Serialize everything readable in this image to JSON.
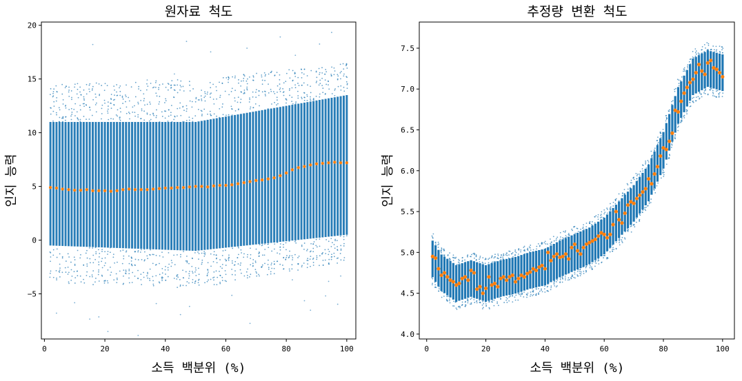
{
  "colors": {
    "scatter": "#1f77b4",
    "mean": "#ff7f0e"
  },
  "chart_data": [
    {
      "type": "scatter",
      "title": "원자료 척도",
      "xlabel": "소득 백분위 (%)",
      "ylabel": "인지 능력",
      "xlim": [
        -1,
        103
      ],
      "ylim": [
        -9.2,
        20.3
      ],
      "xticks": [
        0,
        20,
        40,
        60,
        80,
        100
      ],
      "yticks": [
        -5,
        0,
        5,
        10,
        15,
        20
      ],
      "ytick_labels": [
        "−5",
        "0",
        "5",
        "10",
        "15",
        "20"
      ],
      "series": [
        {
          "kind": "scatter-band",
          "x_range": [
            2,
            100
          ],
          "center": [
            [
              2,
              4.9
            ],
            [
              10,
              4.65
            ],
            [
              20,
              4.6
            ],
            [
              30,
              4.7
            ],
            [
              40,
              4.85
            ],
            [
              50,
              5.0
            ],
            [
              60,
              5.1
            ],
            [
              70,
              5.6
            ],
            [
              80,
              6.3
            ],
            [
              90,
              7.1
            ],
            [
              100,
              7.2
            ]
          ],
          "band_core": [
            [
              2,
              [
                -0.5,
                11
              ]
            ],
            [
              50,
              [
                -1,
                11
              ]
            ],
            [
              100,
              [
                0.5,
                13.5
              ]
            ]
          ],
          "band_outer": [
            [
              2,
              [
                -4,
                14.5
              ]
            ],
            [
              50,
              [
                -4.5,
                15
              ]
            ],
            [
              100,
              [
                -2,
                16.5
              ]
            ]
          ]
        },
        {
          "kind": "mean-line",
          "points": [
            [
              2,
              4.9
            ],
            [
              4,
              4.85
            ],
            [
              6,
              4.75
            ],
            [
              8,
              4.7
            ],
            [
              10,
              4.65
            ],
            [
              12,
              4.65
            ],
            [
              14,
              4.7
            ],
            [
              16,
              4.6
            ],
            [
              18,
              4.6
            ],
            [
              20,
              4.6
            ],
            [
              22,
              4.55
            ],
            [
              24,
              4.6
            ],
            [
              26,
              4.7
            ],
            [
              28,
              4.75
            ],
            [
              30,
              4.7
            ],
            [
              32,
              4.7
            ],
            [
              34,
              4.7
            ],
            [
              36,
              4.75
            ],
            [
              38,
              4.8
            ],
            [
              40,
              4.85
            ],
            [
              42,
              4.85
            ],
            [
              44,
              4.9
            ],
            [
              46,
              4.9
            ],
            [
              48,
              4.95
            ],
            [
              50,
              5.0
            ],
            [
              52,
              5.0
            ],
            [
              54,
              4.95
            ],
            [
              56,
              5.05
            ],
            [
              58,
              5.1
            ],
            [
              60,
              5.1
            ],
            [
              62,
              5.15
            ],
            [
              64,
              5.25
            ],
            [
              66,
              5.35
            ],
            [
              68,
              5.45
            ],
            [
              70,
              5.55
            ],
            [
              72,
              5.6
            ],
            [
              74,
              5.7
            ],
            [
              76,
              5.8
            ],
            [
              78,
              6.0
            ],
            [
              80,
              6.25
            ],
            [
              82,
              6.55
            ],
            [
              84,
              6.75
            ],
            [
              86,
              6.85
            ],
            [
              88,
              7.0
            ],
            [
              90,
              7.1
            ],
            [
              92,
              7.15
            ],
            [
              94,
              7.2
            ],
            [
              96,
              7.25
            ],
            [
              98,
              7.2
            ],
            [
              100,
              7.2
            ]
          ]
        }
      ]
    },
    {
      "type": "scatter",
      "title": "추정량 변환 척도",
      "xlabel": "소득 백분위 (%)",
      "ylabel": "인지 능력",
      "xlim": [
        -2.5,
        104
      ],
      "ylim": [
        3.94,
        7.82
      ],
      "xticks": [
        0,
        20,
        40,
        60,
        80,
        100
      ],
      "yticks": [
        4.0,
        4.5,
        5.0,
        5.5,
        6.0,
        6.5,
        7.0,
        7.5
      ],
      "ytick_labels": [
        "4.0",
        "4.5",
        "5.0",
        "5.5",
        "6.0",
        "6.5",
        "7.0",
        "7.5"
      ],
      "series": [
        {
          "kind": "scatter-band",
          "center": [
            [
              2,
              4.92
            ],
            [
              5,
              4.75
            ],
            [
              10,
              4.62
            ],
            [
              15,
              4.68
            ],
            [
              20,
              4.62
            ],
            [
              25,
              4.68
            ],
            [
              30,
              4.72
            ],
            [
              35,
              4.78
            ],
            [
              40,
              4.82
            ],
            [
              45,
              4.92
            ],
            [
              50,
              5.0
            ],
            [
              55,
              5.08
            ],
            [
              60,
              5.2
            ],
            [
              65,
              5.4
            ],
            [
              70,
              5.6
            ],
            [
              75,
              5.85
            ],
            [
              80,
              6.25
            ],
            [
              85,
              6.8
            ],
            [
              90,
              7.15
            ],
            [
              95,
              7.25
            ],
            [
              100,
              7.2
            ]
          ],
          "band_half_width": 0.28
        },
        {
          "kind": "means",
          "points": [
            [
              2,
              4.95
            ],
            [
              3,
              4.93
            ],
            [
              4,
              4.8
            ],
            [
              5,
              4.72
            ],
            [
              6,
              4.75
            ],
            [
              7,
              4.7
            ],
            [
              8,
              4.66
            ],
            [
              9,
              4.64
            ],
            [
              10,
              4.6
            ],
            [
              11,
              4.62
            ],
            [
              12,
              4.68
            ],
            [
              13,
              4.7
            ],
            [
              14,
              4.66
            ],
            [
              15,
              4.78
            ],
            [
              16,
              4.75
            ],
            [
              17,
              4.55
            ],
            [
              18,
              4.58
            ],
            [
              19,
              4.5
            ],
            [
              20,
              4.56
            ],
            [
              21,
              4.7
            ],
            [
              22,
              4.6
            ],
            [
              23,
              4.62
            ],
            [
              24,
              4.58
            ],
            [
              25,
              4.68
            ],
            [
              26,
              4.7
            ],
            [
              27,
              4.66
            ],
            [
              28,
              4.7
            ],
            [
              29,
              4.72
            ],
            [
              30,
              4.64
            ],
            [
              31,
              4.68
            ],
            [
              32,
              4.72
            ],
            [
              33,
              4.7
            ],
            [
              34,
              4.74
            ],
            [
              35,
              4.76
            ],
            [
              36,
              4.8
            ],
            [
              37,
              4.78
            ],
            [
              38,
              4.82
            ],
            [
              39,
              4.84
            ],
            [
              40,
              4.8
            ],
            [
              41,
              5.0
            ],
            [
              42,
              4.9
            ],
            [
              43,
              4.95
            ],
            [
              44,
              4.98
            ],
            [
              45,
              4.94
            ],
            [
              46,
              4.95
            ],
            [
              47,
              4.98
            ],
            [
              48,
              4.92
            ],
            [
              49,
              5.06
            ],
            [
              50,
              5.1
            ],
            [
              51,
              5.02
            ],
            [
              52,
              4.98
            ],
            [
              53,
              5.06
            ],
            [
              54,
              5.1
            ],
            [
              55,
              5.12
            ],
            [
              56,
              5.14
            ],
            [
              57,
              5.16
            ],
            [
              58,
              5.2
            ],
            [
              59,
              5.24
            ],
            [
              60,
              5.22
            ],
            [
              61,
              5.18
            ],
            [
              62,
              5.22
            ],
            [
              63,
              5.34
            ],
            [
              64,
              5.5
            ],
            [
              65,
              5.4
            ],
            [
              66,
              5.36
            ],
            [
              67,
              5.48
            ],
            [
              68,
              5.58
            ],
            [
              69,
              5.62
            ],
            [
              70,
              5.6
            ],
            [
              71,
              5.66
            ],
            [
              72,
              5.7
            ],
            [
              73,
              5.74
            ],
            [
              74,
              5.78
            ],
            [
              75,
              5.9
            ],
            [
              76,
              5.84
            ],
            [
              77,
              5.96
            ],
            [
              78,
              6.05
            ],
            [
              79,
              6.18
            ],
            [
              80,
              6.28
            ],
            [
              81,
              6.26
            ],
            [
              82,
              6.36
            ],
            [
              83,
              6.46
            ],
            [
              84,
              6.74
            ],
            [
              85,
              6.72
            ],
            [
              86,
              6.85
            ],
            [
              87,
              6.95
            ],
            [
              88,
              7.02
            ],
            [
              89,
              7.08
            ],
            [
              90,
              7.12
            ],
            [
              91,
              7.2
            ],
            [
              92,
              7.3
            ],
            [
              93,
              7.22
            ],
            [
              94,
              7.18
            ],
            [
              95,
              7.32
            ],
            [
              96,
              7.35
            ],
            [
              97,
              7.26
            ],
            [
              98,
              7.24
            ],
            [
              99,
              7.2
            ],
            [
              100,
              7.15
            ]
          ]
        }
      ]
    }
  ]
}
